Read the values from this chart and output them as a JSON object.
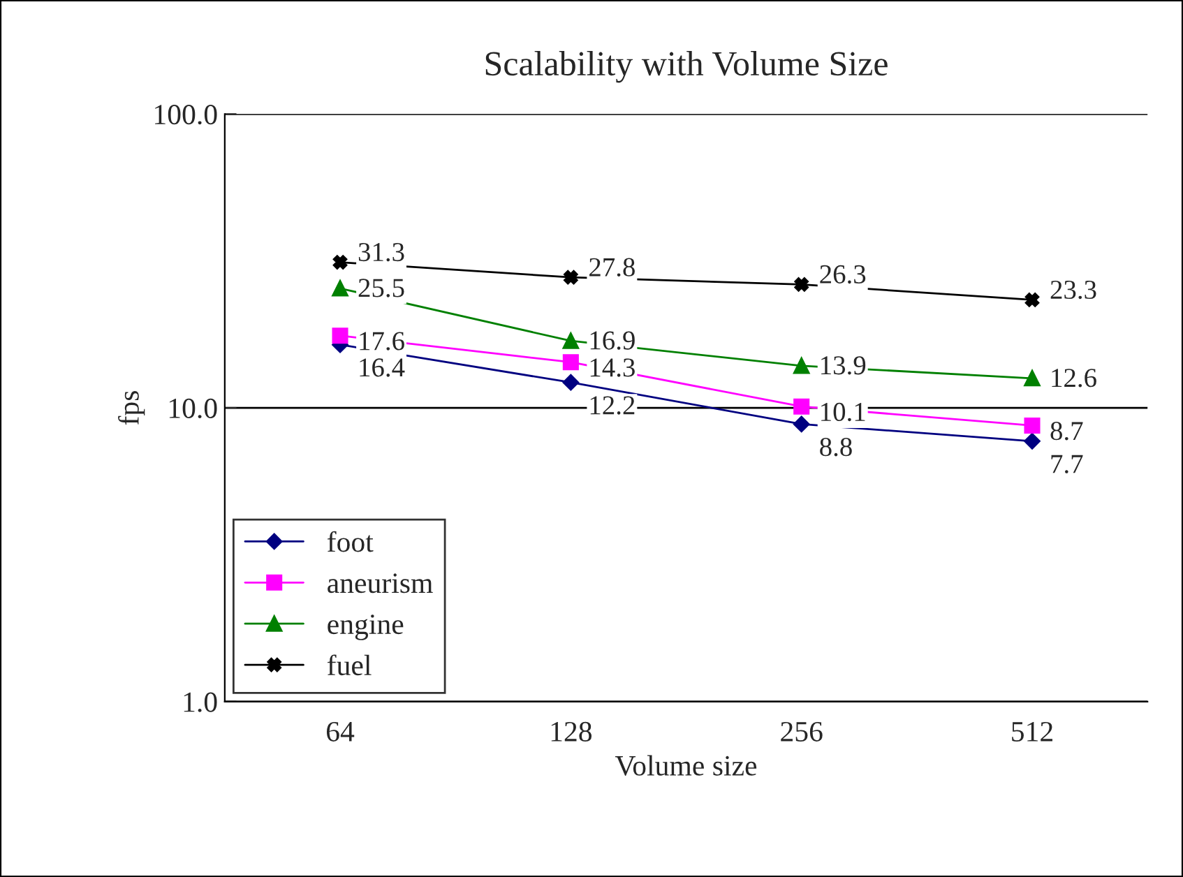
{
  "chart_data": {
    "type": "line",
    "title": "Scalability with Volume Size",
    "xlabel": "Volume size",
    "ylabel": "fps",
    "categories": [
      "64",
      "128",
      "256",
      "512"
    ],
    "series": [
      {
        "name": "foot",
        "color": "#000080",
        "marker": "diamond",
        "values": [
          16.4,
          12.2,
          8.8,
          7.7
        ]
      },
      {
        "name": "aneurism",
        "color": "#ff00ff",
        "marker": "square",
        "values": [
          17.6,
          14.3,
          10.1,
          8.7
        ]
      },
      {
        "name": "engine",
        "color": "#008000",
        "marker": "triangle",
        "values": [
          25.5,
          16.9,
          13.9,
          12.6
        ]
      },
      {
        "name": "fuel",
        "color": "#000000",
        "marker": "cross",
        "values": [
          31.3,
          27.8,
          26.3,
          23.3
        ]
      }
    ],
    "log": "y",
    "ylim": [
      1,
      100
    ],
    "yticks": [
      {
        "value": 1,
        "label": "1.0"
      },
      {
        "value": 10,
        "label": "10.0"
      },
      {
        "value": 100,
        "label": "100.0"
      }
    ],
    "grid": "y",
    "legend": "bottom left",
    "data_labels": true
  }
}
